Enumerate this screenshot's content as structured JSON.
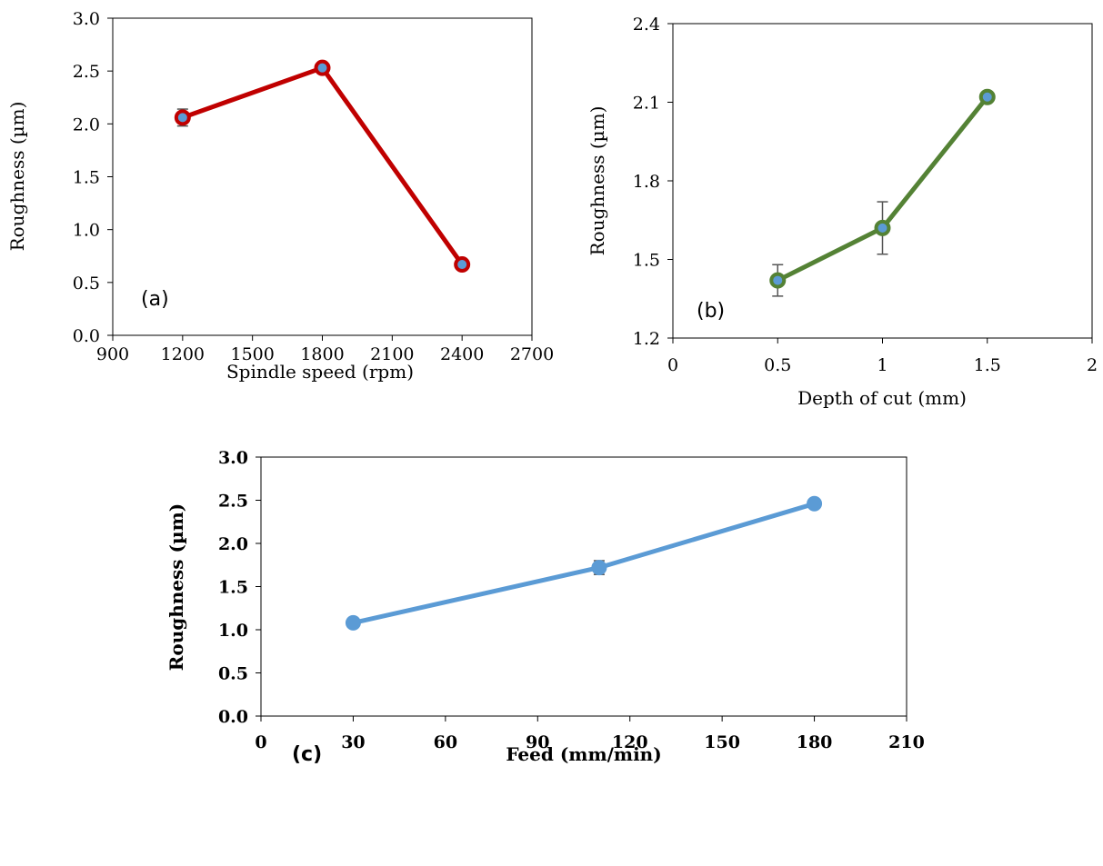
{
  "chart_data": [
    {
      "type": "line",
      "panel_label": "(a)",
      "xlabel": "Spindle speed (rpm)",
      "ylabel": "Roughness (µm)",
      "xlim": [
        900,
        2700
      ],
      "ylim": [
        0,
        3
      ],
      "xticks": [
        "900",
        "1200",
        "1500",
        "1800",
        "2100",
        "2400",
        "2700"
      ],
      "yticks": [
        "0.0",
        "0.5",
        "1.0",
        "1.5",
        "2.0",
        "2.5",
        "3.0"
      ],
      "grid": false,
      "series": [
        {
          "color": "#C00000",
          "x": [
            1200,
            1800,
            2400
          ],
          "y": [
            2.06,
            2.53,
            0.67
          ],
          "error": [
            0.08,
            0.02,
            0.02
          ]
        }
      ]
    },
    {
      "type": "line",
      "panel_label": "(b)",
      "xlabel": "Depth of cut (mm)",
      "ylabel": "Roughness (µm)",
      "xlim": [
        0,
        2
      ],
      "ylim": [
        1.2,
        2.4
      ],
      "xticks": [
        "0",
        "0.5",
        "1",
        "1.5",
        "2"
      ],
      "yticks": [
        "1.2",
        "1.5",
        "1.8",
        "2.1",
        "2.4"
      ],
      "grid": false,
      "series": [
        {
          "color": "#548235",
          "x": [
            0.5,
            1,
            1.5
          ],
          "y": [
            1.42,
            1.62,
            2.12
          ],
          "error": [
            0.06,
            0.1,
            0.0
          ]
        }
      ]
    },
    {
      "type": "line",
      "panel_label": "(c)",
      "xlabel": "Feed (mm/min)",
      "ylabel": "Roughness (µm)",
      "xlim": [
        0,
        210
      ],
      "ylim": [
        0,
        3
      ],
      "xticks": [
        "0",
        "30",
        "60",
        "90",
        "120",
        "150",
        "180",
        "210"
      ],
      "yticks": [
        "0.0",
        "0.5",
        "1.0",
        "1.5",
        "2.0",
        "2.5",
        "3.0"
      ],
      "grid": false,
      "series": [
        {
          "color": "#5B9BD5",
          "x": [
            30,
            110,
            180
          ],
          "y": [
            1.08,
            1.72,
            2.46
          ],
          "error": [
            0.0,
            0.08,
            0.0
          ]
        }
      ]
    }
  ]
}
